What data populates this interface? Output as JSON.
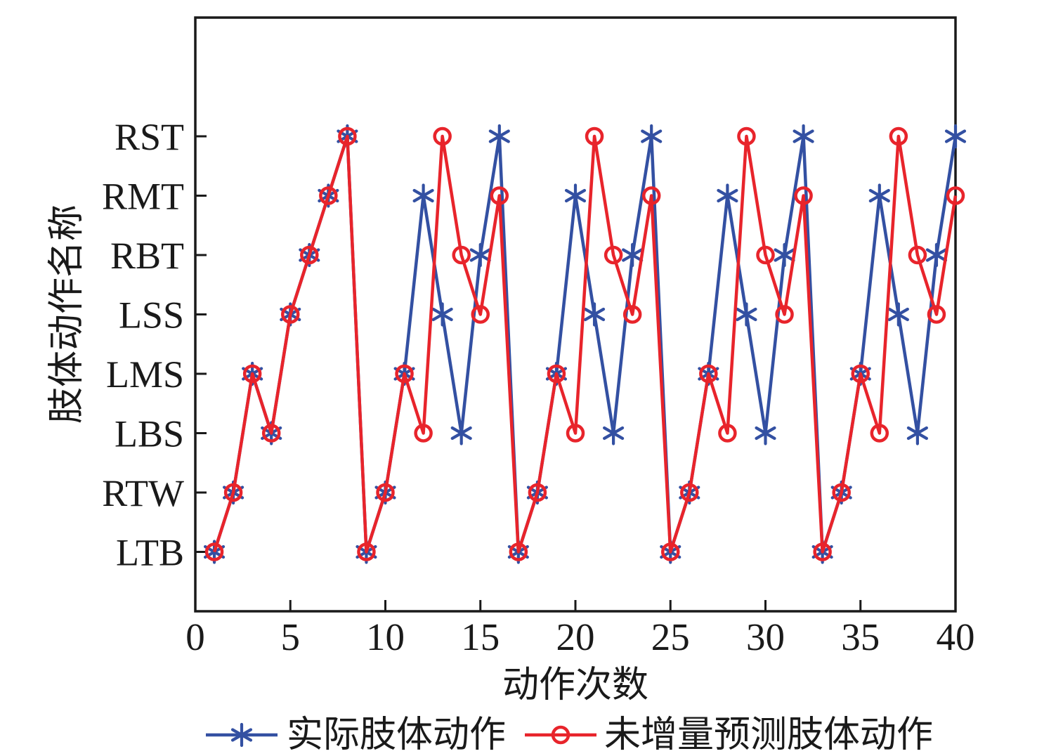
{
  "figure": {
    "background": "#ffffff",
    "axis_color": "#1a1a1a"
  },
  "chart_data": {
    "type": "line",
    "title": "",
    "xlabel": "动作次数",
    "ylabel": "肢体动作名称",
    "xlim": [
      0,
      40
    ],
    "x_ticks": [
      0,
      5,
      10,
      15,
      20,
      25,
      30,
      35,
      40
    ],
    "ylim_levels": [
      0,
      10
    ],
    "y_categories_bottom_to_top": [
      "LTB",
      "RTW",
      "LBS",
      "LMS",
      "LSS",
      "RBT",
      "RMT",
      "RST"
    ],
    "grid": false,
    "legend_position": "below-center",
    "x": [
      1,
      2,
      3,
      4,
      5,
      6,
      7,
      8,
      9,
      10,
      11,
      12,
      13,
      14,
      15,
      16,
      17,
      18,
      19,
      20,
      21,
      22,
      23,
      24,
      25,
      26,
      27,
      28,
      29,
      30,
      31,
      32,
      33,
      34,
      35,
      36,
      37,
      38,
      39,
      40
    ],
    "series": [
      {
        "name": "实际肢体动作",
        "color": "#3350a2",
        "marker": "asterisk",
        "values": [
          "LTB",
          "RTW",
          "LMS",
          "LBS",
          "LSS",
          "RBT",
          "RMT",
          "RST",
          "LTB",
          "RTW",
          "LMS",
          "RMT",
          "LSS",
          "LBS",
          "RBT",
          "RST",
          "LTB",
          "RTW",
          "LMS",
          "RMT",
          "LSS",
          "LBS",
          "RBT",
          "RST",
          "LTB",
          "RTW",
          "LMS",
          "RMT",
          "LSS",
          "LBS",
          "RBT",
          "RST",
          "LTB",
          "RTW",
          "LMS",
          "RMT",
          "LSS",
          "LBS",
          "RBT",
          "RST"
        ]
      },
      {
        "name": "未增量预测肢体动作",
        "color": "#e8242b",
        "marker": "circle",
        "values": [
          "LTB",
          "RTW",
          "LMS",
          "LBS",
          "LSS",
          "RBT",
          "RMT",
          "RST",
          "LTB",
          "RTW",
          "LMS",
          "LBS",
          "RST",
          "RBT",
          "LSS",
          "RMT",
          "LTB",
          "RTW",
          "LMS",
          "LBS",
          "RST",
          "RBT",
          "LSS",
          "RMT",
          "LTB",
          "RTW",
          "LMS",
          "LBS",
          "RST",
          "RBT",
          "LSS",
          "RMT",
          "LTB",
          "RTW",
          "LMS",
          "LBS",
          "RST",
          "RBT",
          "LSS",
          "RMT"
        ]
      }
    ]
  }
}
